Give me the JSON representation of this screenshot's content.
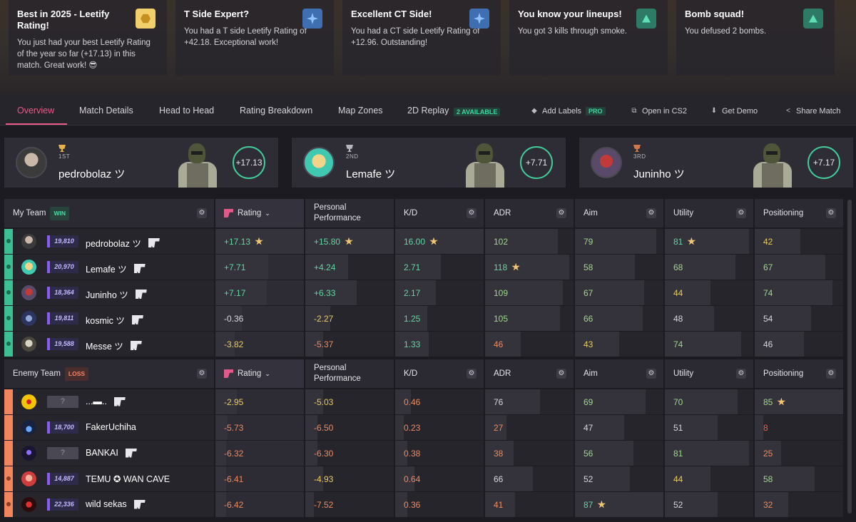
{
  "achievements": [
    {
      "title": "Best in 2025 - Leetify Rating!",
      "desc": "You just had your best Leetify Rating of the year so far (+17.13) in this match. Great work! 😎",
      "icon": "hexagon-icon"
    },
    {
      "title": "T Side Expert?",
      "desc": "You had a T side Leetify Rating of +42.18. Exceptional work!",
      "icon": "star-icon"
    },
    {
      "title": "Excellent CT Side!",
      "desc": "You had a CT side Leetify Rating of +12.96. Outstanding!",
      "icon": "star-icon"
    },
    {
      "title": "You know your lineups!",
      "desc": "You got 3 kills through smoke.",
      "icon": "triangle-icon"
    },
    {
      "title": "Bomb squad!",
      "desc": "You defused 2 bombs.",
      "icon": "triangle-icon"
    }
  ],
  "tabs": [
    "Overview",
    "Match Details",
    "Head to Head",
    "Rating Breakdown",
    "Map Zones",
    "2D Replay"
  ],
  "replay_badge": "2 AVAILABLE",
  "actions": {
    "add_labels": "Add Labels",
    "pro": "PRO",
    "open_cs2": "Open in CS2",
    "get_demo": "Get Demo",
    "share": "Share Match"
  },
  "top_players": [
    {
      "rank": "1ST",
      "name": "pedrobolaz ツ",
      "score": "+17.13",
      "trophy_color": "#e7b34a"
    },
    {
      "rank": "2ND",
      "name": "Lemafe ツ",
      "score": "+7.71",
      "trophy_color": "#b7b5bd"
    },
    {
      "rank": "3RD",
      "name": "Juninho ツ",
      "score": "+7.17",
      "trophy_color": "#d0784a"
    }
  ],
  "columns": {
    "rating": "Rating",
    "personal": "Personal Performance",
    "kd": "K/D",
    "adr": "ADR",
    "aim": "Aim",
    "utility": "Utility",
    "positioning": "Positioning"
  },
  "my_team": {
    "label": "My Team",
    "result": "WIN",
    "players": [
      {
        "name": "pedrobolaz ツ",
        "elo": "19,810",
        "rating": "+17.13",
        "personal": "+15.80",
        "kd": "16.00",
        "adr": "102",
        "aim": "79",
        "utility": "81",
        "positioning": "42"
      },
      {
        "name": "Lemafe ツ",
        "elo": "20,970",
        "rating": "+7.71",
        "personal": "+4.24",
        "kd": "2.71",
        "adr": "118",
        "aim": "58",
        "utility": "68",
        "positioning": "67"
      },
      {
        "name": "Juninho ツ",
        "elo": "18,364",
        "rating": "+7.17",
        "personal": "+6.33",
        "kd": "2.17",
        "adr": "109",
        "aim": "67",
        "utility": "44",
        "positioning": "74"
      },
      {
        "name": "kosmic ツ",
        "elo": "19,811",
        "rating": "-0.36",
        "personal": "-2.27",
        "kd": "1.25",
        "adr": "105",
        "aim": "66",
        "utility": "48",
        "positioning": "54"
      },
      {
        "name": "Messe ツ",
        "elo": "19,588",
        "rating": "-3.82",
        "personal": "-5.37",
        "kd": "1.33",
        "adr": "46",
        "aim": "43",
        "utility": "74",
        "positioning": "46"
      }
    ]
  },
  "enemy_team": {
    "label": "Enemy Team",
    "result": "LOSS",
    "players": [
      {
        "name": "...▬..",
        "elo": "?",
        "rating": "-2.95",
        "personal": "-5.03",
        "kd": "0.46",
        "adr": "76",
        "aim": "69",
        "utility": "70",
        "positioning": "85"
      },
      {
        "name": "FakerUchiha",
        "elo": "18,700",
        "rating": "-5.73",
        "personal": "-6.50",
        "kd": "0.23",
        "adr": "27",
        "aim": "47",
        "utility": "51",
        "positioning": "8"
      },
      {
        "name": "BANKAI",
        "elo": "?",
        "rating": "-6.32",
        "personal": "-6.30",
        "kd": "0.38",
        "adr": "38",
        "aim": "56",
        "utility": "81",
        "positioning": "25"
      },
      {
        "name": "TEMU ✪ WAN CAVE",
        "elo": "14,887",
        "rating": "-6.41",
        "personal": "-4.93",
        "kd": "0.64",
        "adr": "66",
        "aim": "52",
        "utility": "44",
        "positioning": "58"
      },
      {
        "name": "wild sekas",
        "elo": "22,336",
        "rating": "-6.42",
        "personal": "-7.52",
        "kd": "0.36",
        "adr": "41",
        "aim": "87",
        "utility": "52",
        "positioning": "32"
      }
    ]
  }
}
